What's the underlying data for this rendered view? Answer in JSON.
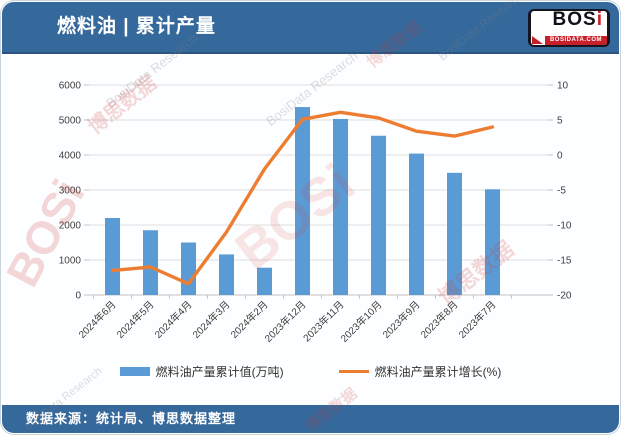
{
  "header": {
    "title": "燃料油 | 累计产量",
    "logo": {
      "text_main": "BOS",
      "text_accent": "i",
      "site": "BOSIDATA.COM"
    }
  },
  "footer": {
    "source": "数据来源：统计局、博思数据整理"
  },
  "watermarks": {
    "cn": "博思数据",
    "en": "BosiData Research",
    "logo": "BOSi",
    "site": "BOSIDATA.COM"
  },
  "legend": {
    "position": "bottom-center"
  },
  "chart_data": {
    "type": "bar",
    "subtype": "bar+line dual-axis",
    "categories": [
      "2024年6月",
      "2024年5月",
      "2024年4月",
      "2024年3月",
      "2024年2月",
      "2023年12月",
      "2023年11月",
      "2023年10月",
      "2023年9月",
      "2023年8月",
      "2023年7月"
    ],
    "series": [
      {
        "name": "燃料油产量累计值(万吨)",
        "type": "bar",
        "axis": "left",
        "color": "#5B9BD5",
        "values": [
          2200,
          1850,
          1500,
          1160,
          780,
          5370,
          5030,
          4550,
          4040,
          3490,
          3020
        ]
      },
      {
        "name": "燃料油产量累计增长(%)",
        "type": "line",
        "axis": "right",
        "color": "#ED7D31",
        "values": [
          -16.5,
          -16.0,
          -18.4,
          -11.0,
          -2.0,
          5.1,
          6.1,
          5.3,
          3.4,
          2.7,
          4.0
        ]
      }
    ],
    "left_axis": {
      "min": 0,
      "max": 6000,
      "step": 1000,
      "ticks": [
        0,
        1000,
        2000,
        3000,
        4000,
        5000,
        6000
      ]
    },
    "right_axis": {
      "min": -20,
      "max": 10,
      "step": 5,
      "ticks": [
        10,
        5,
        0,
        -5,
        -10,
        -15,
        -20
      ]
    },
    "grid": true,
    "x_label_rotation": -45,
    "legend_position": "bottom"
  }
}
